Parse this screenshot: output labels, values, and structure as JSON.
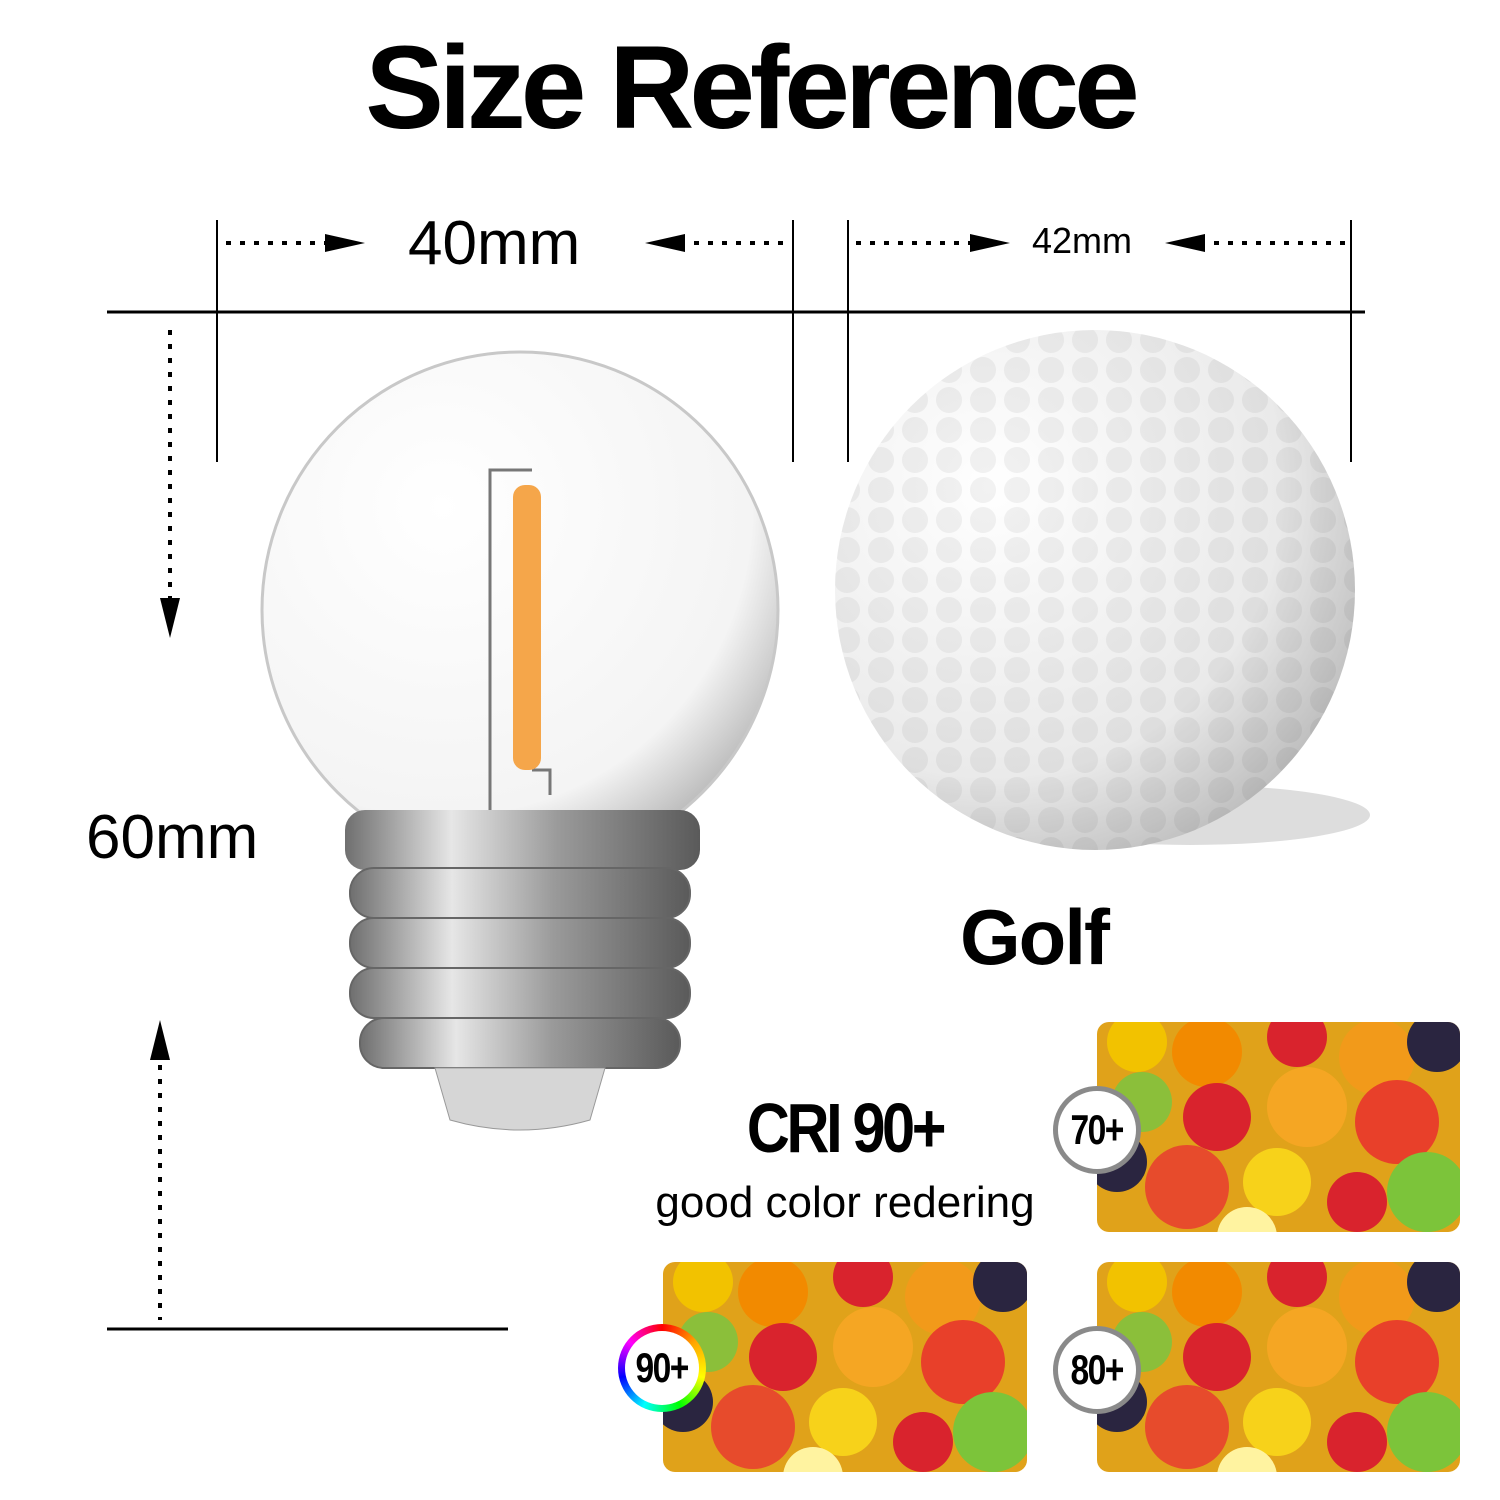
{
  "title": "Size Reference",
  "bulb": {
    "width": "40mm",
    "height": "60mm"
  },
  "golf": {
    "width": "42mm",
    "label": "Golf"
  },
  "cri": {
    "heading": "CRI 90+",
    "subtitle": "good color redering",
    "badges": [
      "70+",
      "90+",
      "80+"
    ],
    "filament_color": "#f5a64a"
  }
}
